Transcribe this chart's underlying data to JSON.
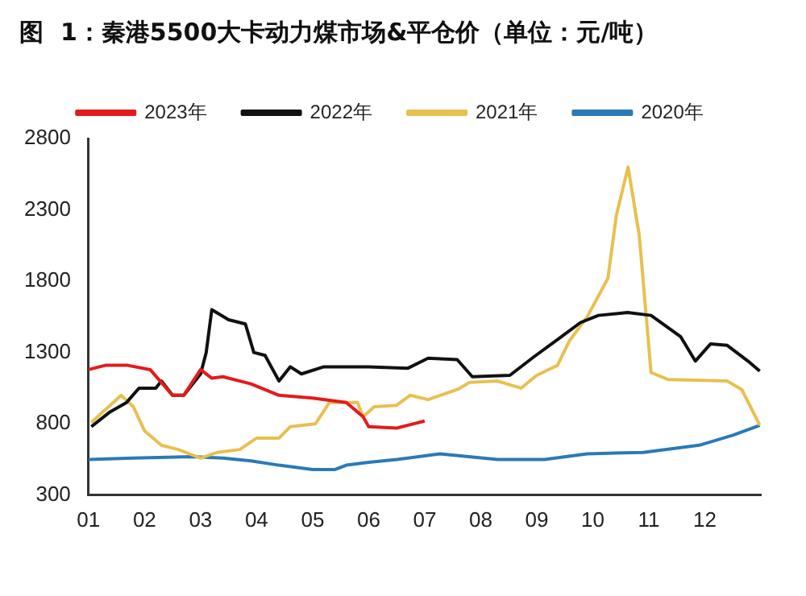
{
  "chart_data": {
    "type": "line",
    "title": "图  1：秦港5500大卡动力煤市场&平仓价（单位：元/吨）",
    "xlim": [
      1,
      13
    ],
    "xticks": [
      {
        "value": 1,
        "label": "01"
      },
      {
        "value": 2,
        "label": "02"
      },
      {
        "value": 3,
        "label": "03"
      },
      {
        "value": 4,
        "label": "04"
      },
      {
        "value": 5,
        "label": "05"
      },
      {
        "value": 6,
        "label": "06"
      },
      {
        "value": 7,
        "label": "07"
      },
      {
        "value": 8,
        "label": "08"
      },
      {
        "value": 9,
        "label": "09"
      },
      {
        "value": 10,
        "label": "10"
      },
      {
        "value": 11,
        "label": "11"
      },
      {
        "value": 12,
        "label": "12"
      }
    ],
    "ylim": [
      300,
      2800
    ],
    "yticks": [
      300,
      800,
      1300,
      1800,
      2300,
      2800
    ],
    "legend": "top",
    "grid": false,
    "marker": "none",
    "line_style": "solid",
    "series": [
      {
        "name": "2023年",
        "color": "#e41a1c",
        "x": [
          1.0,
          1.3,
          1.7,
          2.1,
          2.5,
          2.7,
          3.0,
          3.2,
          3.4,
          3.9,
          4.4,
          5.0,
          5.6,
          5.9,
          6.0,
          6.5,
          7.0
        ],
        "values": [
          1180,
          1210,
          1210,
          1180,
          1000,
          1000,
          1180,
          1120,
          1130,
          1080,
          1000,
          980,
          950,
          850,
          780,
          770,
          820
        ]
      },
      {
        "name": "2022年",
        "color": "#111111",
        "x": [
          1.05,
          1.37,
          1.68,
          1.9,
          2.2,
          2.3,
          2.5,
          2.7,
          3.0,
          3.1,
          3.2,
          3.5,
          3.8,
          3.95,
          4.15,
          4.4,
          4.6,
          4.8,
          5.2,
          6.0,
          6.7,
          7.06,
          7.58,
          7.85,
          8.52,
          8.95,
          9.37,
          9.78,
          10.1,
          10.62,
          11.04,
          11.57,
          11.83,
          12.1,
          12.4,
          12.77,
          12.98
        ],
        "values": [
          780,
          880,
          950,
          1050,
          1050,
          1100,
          1000,
          1000,
          1150,
          1300,
          1600,
          1530,
          1500,
          1300,
          1280,
          1100,
          1200,
          1150,
          1200,
          1200,
          1190,
          1260,
          1250,
          1130,
          1140,
          1270,
          1390,
          1510,
          1560,
          1580,
          1560,
          1410,
          1240,
          1360,
          1350,
          1240,
          1170
        ]
      },
      {
        "name": "2021年",
        "color": "#e8c050",
        "x": [
          1.05,
          1.47,
          1.58,
          1.8,
          2.0,
          2.3,
          2.6,
          3.0,
          3.3,
          3.7,
          4.0,
          4.4,
          4.6,
          5.05,
          5.3,
          5.8,
          5.9,
          6.1,
          6.5,
          6.74,
          7.06,
          7.58,
          7.8,
          8.3,
          8.72,
          9.0,
          9.37,
          9.58,
          9.9,
          10.27,
          10.42,
          10.63,
          10.83,
          11.04,
          11.35,
          12.4,
          12.66,
          12.98
        ],
        "values": [
          810,
          960,
          1000,
          920,
          750,
          650,
          620,
          560,
          600,
          620,
          700,
          700,
          780,
          800,
          950,
          950,
          850,
          920,
          930,
          1000,
          970,
          1040,
          1090,
          1100,
          1050,
          1140,
          1210,
          1380,
          1550,
          1820,
          2260,
          2600,
          2120,
          1160,
          1110,
          1100,
          1040,
          790
        ]
      },
      {
        "name": "2020年",
        "color": "#2a7ab8",
        "x": [
          1.0,
          1.8,
          2.85,
          3.4,
          3.9,
          4.4,
          5.0,
          5.4,
          5.6,
          6.0,
          6.5,
          7.27,
          8.3,
          9.14,
          9.9,
          10.9,
          11.9,
          12.5,
          12.98
        ],
        "values": [
          550,
          560,
          570,
          560,
          540,
          510,
          480,
          480,
          510,
          530,
          550,
          590,
          550,
          550,
          590,
          600,
          650,
          720,
          790
        ]
      }
    ]
  }
}
